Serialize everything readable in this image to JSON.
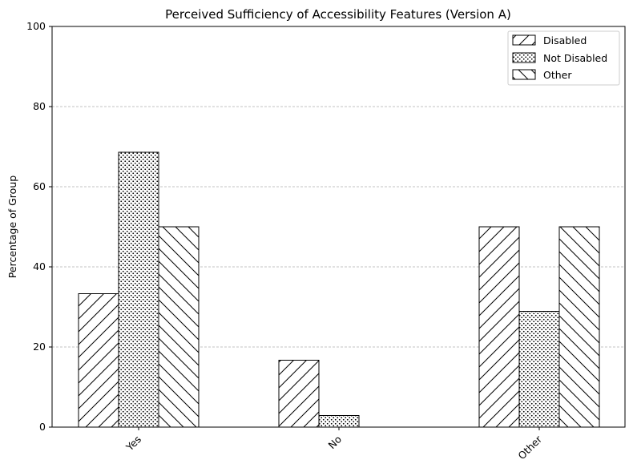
{
  "chart_data": {
    "type": "bar",
    "title": "Perceived Sufficiency of Accessibility Features (Version A)",
    "xlabel": "",
    "ylabel": "Percentage of Group",
    "ylim": [
      0,
      100
    ],
    "yticks": [
      0,
      20,
      40,
      60,
      80,
      100
    ],
    "grid": true,
    "legend_position": "top-right",
    "categories": [
      "Yes",
      "No",
      "Other"
    ],
    "series": [
      {
        "name": "Disabled",
        "values": [
          33.3,
          16.7,
          50.0
        ],
        "hatch": "forward-diagonal",
        "color": "#ffffff"
      },
      {
        "name": "Not Disabled",
        "values": [
          68.6,
          2.9,
          28.9
        ],
        "hatch": "dots",
        "color": "#ffffff"
      },
      {
        "name": "Other",
        "values": [
          50.0,
          0.0,
          50.0
        ],
        "hatch": "back-diagonal",
        "color": "#ffffff"
      }
    ],
    "edge_color": "#000000",
    "grid_color": "#b0b0b0"
  }
}
